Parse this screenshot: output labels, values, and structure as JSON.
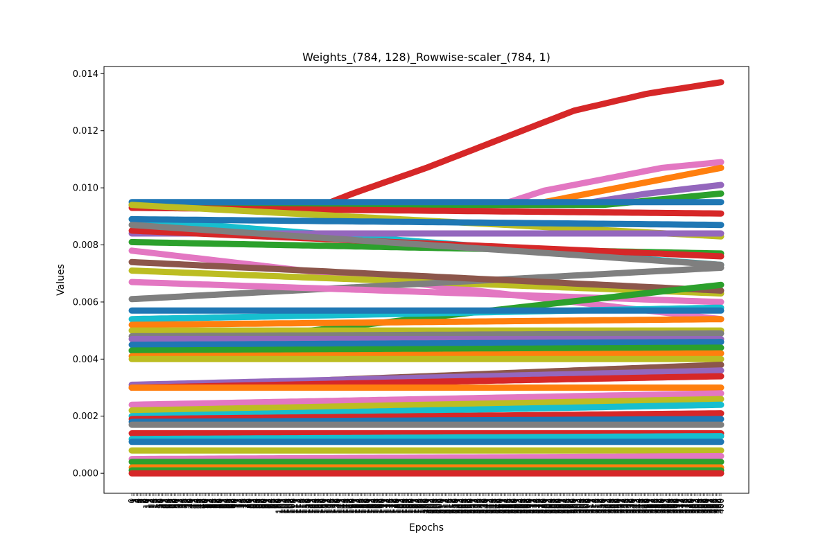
{
  "chart_data": {
    "type": "line",
    "title": "Weights_(784, 128)_Rowwise-scaler_(784, 1)",
    "xlabel": "Epochs",
    "ylabel": "Values",
    "xlim": [
      0,
      400
    ],
    "ylim": [
      -0.0007,
      0.01425
    ],
    "x_tick_note": "one rotated tick label per epoch; labels overlap densely",
    "y_ticks": [
      0.0,
      0.002,
      0.004,
      0.006,
      0.008,
      0.01,
      0.012,
      0.014
    ],
    "y_tick_labels": [
      "0.000",
      "0.002",
      "0.004",
      "0.006",
      "0.008",
      "0.010",
      "0.012",
      "0.014"
    ],
    "grid": false,
    "legend": "none",
    "marker": "o",
    "palette": [
      "#1f77b4",
      "#ff7f0e",
      "#2ca02c",
      "#d62728",
      "#9467bd",
      "#8c564b",
      "#e377c2",
      "#7f7f7f",
      "#bcbd22",
      "#17becf"
    ],
    "series": [
      {
        "color": "#d62728",
        "x": [
          0,
          130,
          150,
          200,
          250,
          300,
          350,
          400
        ],
        "values": [
          0.0094,
          0.0094,
          0.0098,
          0.0107,
          0.0117,
          0.0127,
          0.0133,
          0.0137
        ]
      },
      {
        "color": "#e377c2",
        "x": [
          0,
          250,
          280,
          320,
          360,
          400
        ],
        "values": [
          0.0094,
          0.0094,
          0.0099,
          0.0103,
          0.0107,
          0.0109
        ]
      },
      {
        "color": "#ff7f0e",
        "x": [
          0,
          270,
          300,
          350,
          400
        ],
        "values": [
          0.0094,
          0.0094,
          0.0097,
          0.0102,
          0.0107
        ]
      },
      {
        "color": "#9467bd",
        "x": [
          0,
          300,
          350,
          400
        ],
        "values": [
          0.0094,
          0.0094,
          0.0098,
          0.0101
        ]
      },
      {
        "color": "#2ca02c",
        "x": [
          0,
          320,
          400
        ],
        "values": [
          0.0094,
          0.0094,
          0.0098
        ]
      },
      {
        "color": "#1f77b4",
        "x": [
          0,
          400
        ],
        "values": [
          0.0095,
          0.0095
        ]
      },
      {
        "color": "#d62728",
        "x": [
          0,
          400
        ],
        "values": [
          0.0093,
          0.0091
        ]
      },
      {
        "color": "#bcbd22",
        "x": [
          0,
          400
        ],
        "values": [
          0.0094,
          0.0083
        ]
      },
      {
        "color": "#17becf",
        "x": [
          0,
          400
        ],
        "values": [
          0.0089,
          0.0073
        ]
      },
      {
        "color": "#1f77b4",
        "x": [
          0,
          400
        ],
        "values": [
          0.0089,
          0.0087
        ]
      },
      {
        "color": "#9467bd",
        "x": [
          0,
          400
        ],
        "values": [
          0.0084,
          0.0084
        ]
      },
      {
        "color": "#2ca02c",
        "x": [
          0,
          400
        ],
        "values": [
          0.0081,
          0.0077
        ]
      },
      {
        "color": "#d62728",
        "x": [
          0,
          400
        ],
        "values": [
          0.0085,
          0.0076
        ]
      },
      {
        "color": "#7f7f7f",
        "x": [
          0,
          400
        ],
        "values": [
          0.0087,
          0.0073
        ]
      },
      {
        "color": "#e377c2",
        "x": [
          0,
          400
        ],
        "values": [
          0.0078,
          0.0054
        ]
      },
      {
        "color": "#bcbd22",
        "x": [
          0,
          400
        ],
        "values": [
          0.0071,
          0.0063
        ]
      },
      {
        "color": "#7f7f7f",
        "x": [
          0,
          400
        ],
        "values": [
          0.0061,
          0.0072
        ]
      },
      {
        "color": "#e377c2",
        "x": [
          0,
          400
        ],
        "values": [
          0.0067,
          0.006
        ]
      },
      {
        "color": "#8c564b",
        "x": [
          0,
          400
        ],
        "values": [
          0.0074,
          0.0064
        ]
      },
      {
        "color": "#2ca02c",
        "x": [
          0,
          400
        ],
        "values": [
          0.0043,
          0.0066
        ]
      },
      {
        "color": "#17becf",
        "x": [
          0,
          400
        ],
        "values": [
          0.0054,
          0.0058
        ]
      },
      {
        "color": "#1f77b4",
        "x": [
          0,
          400
        ],
        "values": [
          0.0057,
          0.0057
        ]
      },
      {
        "color": "#ff7f0e",
        "x": [
          0,
          400
        ],
        "values": [
          0.0052,
          0.0054
        ]
      },
      {
        "color": "#bcbd22",
        "x": [
          0,
          400
        ],
        "values": [
          0.005,
          0.005
        ]
      },
      {
        "color": "#7f7f7f",
        "x": [
          0,
          400
        ],
        "values": [
          0.0048,
          0.0049
        ]
      },
      {
        "color": "#9467bd",
        "x": [
          0,
          400
        ],
        "values": [
          0.0047,
          0.0047
        ]
      },
      {
        "color": "#1f77b4",
        "x": [
          0,
          400
        ],
        "values": [
          0.0045,
          0.0046
        ]
      },
      {
        "color": "#2ca02c",
        "x": [
          0,
          400
        ],
        "values": [
          0.0043,
          0.0044
        ]
      },
      {
        "color": "#ff7f0e",
        "x": [
          0,
          400
        ],
        "values": [
          0.0041,
          0.0042
        ]
      },
      {
        "color": "#bcbd22",
        "x": [
          0,
          400
        ],
        "values": [
          0.004,
          0.004
        ]
      },
      {
        "color": "#8c564b",
        "x": [
          0,
          400
        ],
        "values": [
          0.003,
          0.0038
        ]
      },
      {
        "color": "#9467bd",
        "x": [
          0,
          400
        ],
        "values": [
          0.0031,
          0.0036
        ]
      },
      {
        "color": "#d62728",
        "x": [
          0,
          400
        ],
        "values": [
          0.003,
          0.0034
        ]
      },
      {
        "color": "#ff7f0e",
        "x": [
          0,
          400
        ],
        "values": [
          0.003,
          0.003
        ]
      },
      {
        "color": "#e377c2",
        "x": [
          0,
          400
        ],
        "values": [
          0.0024,
          0.0028
        ]
      },
      {
        "color": "#bcbd22",
        "x": [
          0,
          400
        ],
        "values": [
          0.0022,
          0.0026
        ]
      },
      {
        "color": "#17becf",
        "x": [
          0,
          400
        ],
        "values": [
          0.002,
          0.0024
        ]
      },
      {
        "color": "#d62728",
        "x": [
          0,
          400
        ],
        "values": [
          0.0019,
          0.0021
        ]
      },
      {
        "color": "#1f77b4",
        "x": [
          0,
          400
        ],
        "values": [
          0.0018,
          0.0019
        ]
      },
      {
        "color": "#7f7f7f",
        "x": [
          0,
          400
        ],
        "values": [
          0.0017,
          0.0017
        ]
      },
      {
        "color": "#d62728",
        "x": [
          0,
          400
        ],
        "values": [
          0.0014,
          0.0014
        ]
      },
      {
        "color": "#17becf",
        "x": [
          0,
          400
        ],
        "values": [
          0.0012,
          0.0013
        ]
      },
      {
        "color": "#1f77b4",
        "x": [
          0,
          400
        ],
        "values": [
          0.0011,
          0.0011
        ]
      },
      {
        "color": "#bcbd22",
        "x": [
          0,
          400
        ],
        "values": [
          0.0008,
          0.0008
        ]
      },
      {
        "color": "#e377c2",
        "x": [
          0,
          400
        ],
        "values": [
          0.0005,
          0.0006
        ]
      },
      {
        "color": "#2ca02c",
        "x": [
          0,
          400
        ],
        "values": [
          0.0004,
          0.0004
        ]
      },
      {
        "color": "#ff7f0e",
        "x": [
          0,
          400
        ],
        "values": [
          0.0002,
          0.0002
        ]
      },
      {
        "color": "#2ca02c",
        "x": [
          0,
          400
        ],
        "values": [
          0.0001,
          0.0001
        ]
      },
      {
        "color": "#d62728",
        "x": [
          0,
          400
        ],
        "values": [
          0.0,
          0.0
        ]
      }
    ]
  }
}
